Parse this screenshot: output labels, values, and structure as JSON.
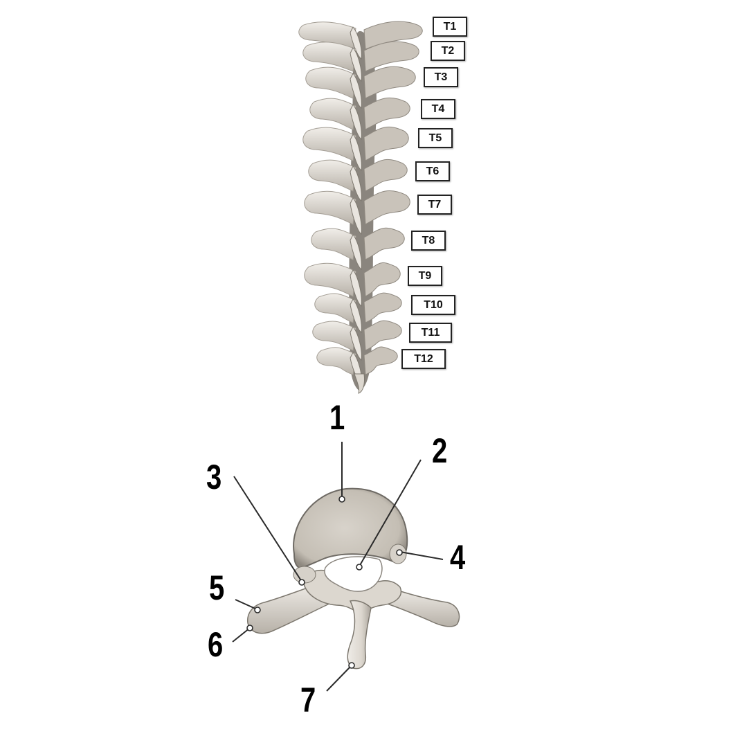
{
  "vertebra_labels": [
    "T1",
    "T2",
    "T3",
    "T4",
    "T5",
    "T6",
    "T7",
    "T8",
    "T9",
    "T10",
    "T11",
    "T12"
  ],
  "callouts": [
    "1",
    "2",
    "3",
    "4",
    "5",
    "6",
    "7"
  ],
  "colors": {
    "bone": "#e6e2dc",
    "bone_shadow": "#9c968d",
    "bone_dark": "#6e6a64",
    "line": "#2a2a2a"
  }
}
